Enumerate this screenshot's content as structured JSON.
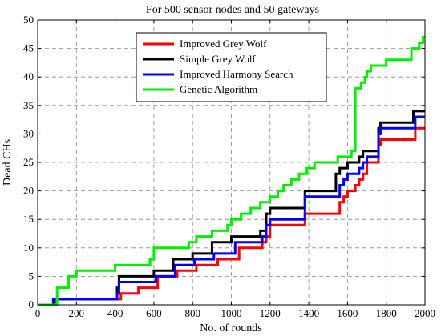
{
  "chart_data": {
    "type": "line",
    "title": "For 500 sensor nodes and 50 gateways",
    "xlabel": "No. of rounds",
    "ylabel": "Dead CHs",
    "xlim": [
      0,
      2000
    ],
    "ylim": [
      0,
      50
    ],
    "xticks": [
      0,
      200,
      400,
      600,
      800,
      1000,
      1200,
      1400,
      1600,
      1800,
      2000
    ],
    "yticks": [
      0,
      5,
      10,
      15,
      20,
      25,
      30,
      35,
      40,
      45,
      50
    ],
    "grid": true,
    "legend_position": "top-center",
    "series": [
      {
        "name": "Improved Grey Wolf",
        "color": "#ff0000",
        "x": [
          0,
          90,
          420,
          430,
          520,
          620,
          720,
          820,
          930,
          1040,
          1160,
          1180,
          1200,
          1370,
          1380,
          1520,
          1560,
          1580,
          1600,
          1640,
          1660,
          1680,
          1700,
          1760,
          1770,
          1950,
          2000
        ],
        "y": [
          0,
          1,
          1,
          2,
          3,
          5,
          6,
          7,
          8,
          10,
          11,
          12,
          14,
          14,
          16,
          16,
          18,
          19,
          20,
          21,
          22,
          23,
          25,
          28,
          29,
          31,
          31
        ]
      },
      {
        "name": "Simple Grey Wolf",
        "color": "#000000",
        "x": [
          0,
          85,
          400,
          410,
          420,
          500,
          600,
          700,
          800,
          900,
          1000,
          1150,
          1180,
          1200,
          1370,
          1380,
          1500,
          1540,
          1560,
          1580,
          1600,
          1640,
          1660,
          1680,
          1700,
          1760,
          1770,
          1940,
          2000
        ],
        "y": [
          0,
          1,
          1,
          3,
          5,
          5,
          6,
          8,
          9,
          11,
          12,
          13,
          16,
          17,
          17,
          20,
          20,
          23,
          24,
          24,
          25,
          25,
          26,
          27,
          27,
          31,
          32,
          34,
          34
        ]
      },
      {
        "name": "Improved Harmony Search",
        "color": "#0000ff",
        "x": [
          0,
          80,
          400,
          410,
          420,
          510,
          610,
          710,
          810,
          910,
          1020,
          1160,
          1180,
          1200,
          1370,
          1380,
          1520,
          1560,
          1580,
          1600,
          1640,
          1660,
          1680,
          1700,
          1760,
          1770,
          1950,
          2000
        ],
        "y": [
          0,
          1,
          1,
          2,
          4,
          4,
          5,
          7,
          8,
          9,
          11,
          12,
          14,
          15,
          15,
          19,
          19,
          21,
          22,
          23,
          23,
          24,
          25,
          26,
          30,
          31,
          33,
          33
        ]
      },
      {
        "name": "Genetic Algorithm",
        "color": "#00ee00",
        "x": [
          0,
          100,
          160,
          200,
          280,
          400,
          580,
          600,
          780,
          820,
          900,
          980,
          1000,
          1050,
          1100,
          1150,
          1200,
          1240,
          1270,
          1310,
          1350,
          1390,
          1430,
          1480,
          1550,
          1620,
          1640,
          1670,
          1690,
          1700,
          1720,
          1760,
          1800,
          1860,
          1930,
          1970,
          1990,
          2000
        ],
        "y": [
          0,
          3,
          5,
          6,
          6,
          7,
          8,
          10,
          11,
          12,
          13,
          14,
          15,
          16,
          17,
          18,
          19,
          20,
          21,
          22,
          23,
          24,
          25,
          25,
          26,
          27,
          38,
          39,
          40,
          41,
          42,
          42,
          43,
          43,
          45,
          46,
          47,
          47
        ]
      }
    ]
  }
}
